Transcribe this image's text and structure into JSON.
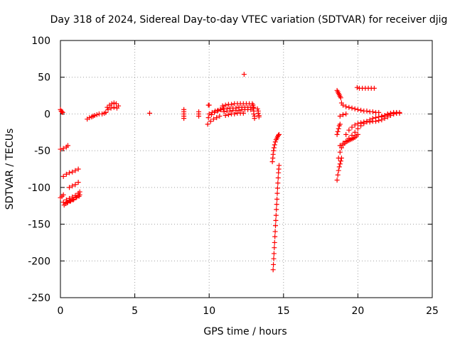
{
  "chart_data": {
    "type": "scatter",
    "title": "Day 318 of 2024, Sidereal Day-to-day VTEC variation (SDTVAR) for receiver djig",
    "xlabel": "GPS time / hours",
    "ylabel": "SDTVAR / TECUs",
    "xlim": [
      0,
      25
    ],
    "ylim": [
      -250,
      100
    ],
    "xticks": [
      0,
      5,
      10,
      15,
      20,
      25
    ],
    "yticks": [
      -250,
      -200,
      -150,
      -100,
      -50,
      0,
      50,
      100
    ],
    "grid": true,
    "marker": "+",
    "color": "#ff0000",
    "segments": [
      {
        "name": "seg-a1",
        "x": [
          0.0,
          0.05,
          0.1,
          0.15
        ],
        "y": [
          6,
          4,
          3,
          2
        ]
      },
      {
        "name": "seg-a2",
        "x": [
          0.0,
          0.2,
          0.4,
          0.5
        ],
        "y": [
          -48,
          -47,
          -45,
          -43
        ]
      },
      {
        "name": "seg-a3",
        "x": [
          0.0,
          0.1,
          0.2
        ],
        "y": [
          -114,
          -112,
          -110
        ]
      },
      {
        "name": "seg-a4",
        "x": [
          0.2,
          0.4,
          0.6,
          0.8,
          1.0,
          1.2,
          1.3
        ],
        "y": [
          -120,
          -117,
          -115,
          -113,
          -111,
          -108,
          -106
        ]
      },
      {
        "name": "seg-a5",
        "x": [
          0.25,
          0.45,
          0.65,
          0.85,
          1.05,
          1.25
        ],
        "y": [
          -124,
          -121,
          -119,
          -117,
          -114,
          -112
        ]
      },
      {
        "name": "seg-a6",
        "x": [
          0.35,
          0.5,
          0.7,
          0.9,
          1.1,
          1.3
        ],
        "y": [
          -122,
          -120,
          -118,
          -116,
          -113,
          -110
        ]
      },
      {
        "name": "seg-a7",
        "x": [
          0.2,
          0.4,
          0.6,
          0.8,
          1.0,
          1.2
        ],
        "y": [
          -85,
          -82,
          -80,
          -79,
          -77,
          -75
        ]
      },
      {
        "name": "seg-a8",
        "x": [
          0.6,
          0.8,
          1.0,
          1.2
        ],
        "y": [
          -100,
          -98,
          -96,
          -93
        ]
      },
      {
        "name": "seg-b1",
        "x": [
          1.8,
          1.95,
          2.1,
          2.2
        ],
        "y": [
          -7,
          -5,
          -4,
          -3
        ]
      },
      {
        "name": "seg-b2",
        "x": [
          2.3,
          2.45,
          2.6
        ],
        "y": [
          -2,
          -1,
          0
        ]
      },
      {
        "name": "seg-b3",
        "x": [
          2.8,
          2.95,
          3.05
        ],
        "y": [
          0,
          1,
          2
        ]
      },
      {
        "name": "seg-b4",
        "x": [
          3.15,
          3.3,
          3.45,
          3.6,
          3.75,
          3.9
        ],
        "y": [
          9,
          12,
          14,
          15,
          14,
          11
        ]
      },
      {
        "name": "seg-b5",
        "x": [
          3.2,
          3.4,
          3.6,
          3.8
        ],
        "y": [
          6,
          8,
          9,
          8
        ]
      },
      {
        "name": "seg-c1",
        "x": [
          6.0
        ],
        "y": [
          1
        ]
      },
      {
        "name": "seg-d1",
        "x": [
          8.3,
          8.3,
          8.3,
          8.3,
          8.3
        ],
        "y": [
          6,
          3,
          0,
          -3,
          -6
        ]
      },
      {
        "name": "seg-d2",
        "x": [
          9.3,
          9.3,
          9.3
        ],
        "y": [
          3,
          0,
          -3
        ]
      },
      {
        "name": "seg-e1",
        "x": [
          9.95,
          10.0
        ],
        "y": [
          12,
          12
        ]
      },
      {
        "name": "seg-e2",
        "x": [
          9.9,
          10.1,
          10.3,
          10.5,
          10.7
        ],
        "y": [
          -14,
          -10,
          -7,
          -5,
          -3
        ]
      },
      {
        "name": "seg-e3",
        "x": [
          9.95,
          10.15,
          10.35,
          10.55,
          10.75,
          10.95
        ],
        "y": [
          -5,
          -1,
          2,
          4,
          6,
          7
        ]
      },
      {
        "name": "seg-e4",
        "x": [
          10.0,
          10.2,
          10.4,
          10.6,
          10.8,
          11.0,
          11.2,
          11.4,
          11.6,
          11.8,
          12.0,
          12.2,
          12.4,
          12.6,
          12.8,
          13.0
        ],
        "y": [
          0,
          2,
          4,
          5,
          6,
          7,
          7,
          8,
          8,
          8,
          9,
          9,
          9,
          9,
          9,
          9
        ]
      },
      {
        "name": "seg-e5",
        "x": [
          10.9,
          11.1,
          11.3,
          11.5,
          11.7,
          11.9,
          12.1,
          12.3,
          12.5,
          12.7,
          12.9
        ],
        "y": [
          11,
          12,
          13,
          13,
          14,
          14,
          14,
          14,
          14,
          14,
          14
        ]
      },
      {
        "name": "seg-e6",
        "x": [
          11.0,
          11.2,
          11.4,
          11.6,
          11.8,
          12.0,
          12.2,
          12.4,
          12.6,
          12.8
        ],
        "y": [
          3,
          4,
          4,
          5,
          5,
          5,
          6,
          6,
          6,
          6
        ]
      },
      {
        "name": "seg-e7",
        "x": [
          11.1,
          11.3,
          11.5,
          11.7,
          11.9,
          12.1,
          12.3
        ],
        "y": [
          -2,
          -1,
          0,
          0,
          1,
          1,
          1
        ]
      },
      {
        "name": "seg-e8",
        "x": [
          12.35
        ],
        "y": [
          54
        ]
      },
      {
        "name": "seg-e9",
        "x": [
          12.95,
          12.95,
          13.0,
          13.0,
          13.05,
          13.05
        ],
        "y": [
          12,
          8,
          4,
          0,
          -3,
          -6
        ]
      },
      {
        "name": "seg-e10",
        "x": [
          13.25,
          13.3,
          13.3,
          13.35,
          13.35
        ],
        "y": [
          7,
          4,
          1,
          -2,
          -4
        ]
      },
      {
        "name": "seg-f1",
        "x": [
          14.25,
          14.28,
          14.3,
          14.33,
          14.36,
          14.4,
          14.45,
          14.5,
          14.55,
          14.6,
          14.65,
          14.7
        ],
        "y": [
          -65,
          -60,
          -55,
          -50,
          -46,
          -42,
          -38,
          -35,
          -33,
          -31,
          -29,
          -28
        ]
      },
      {
        "name": "seg-f2",
        "x": [
          14.3,
          14.32,
          14.34,
          14.36,
          14.38,
          14.4,
          14.42,
          14.44,
          14.46,
          14.48,
          14.5,
          14.52,
          14.54,
          14.56,
          14.58,
          14.6,
          14.62,
          14.64,
          14.66,
          14.68,
          14.7
        ],
        "y": [
          -212,
          -205,
          -197,
          -190,
          -182,
          -175,
          -167,
          -160,
          -152,
          -145,
          -138,
          -130,
          -123,
          -116,
          -108,
          -101,
          -94,
          -87,
          -80,
          -75,
          -70
        ]
      },
      {
        "name": "seg-g1",
        "x": [
          18.6,
          18.65,
          18.7,
          18.75,
          18.8,
          18.85
        ],
        "y": [
          32,
          30,
          28,
          26,
          24,
          22
        ]
      },
      {
        "name": "seg-g2",
        "x": [
          18.6,
          18.65,
          18.7,
          18.75,
          18.8,
          18.85,
          18.9
        ],
        "y": [
          -90,
          -83,
          -77,
          -72,
          -68,
          -64,
          -60
        ]
      },
      {
        "name": "seg-g3",
        "x": [
          18.6,
          18.65,
          18.7,
          18.75,
          18.8
        ],
        "y": [
          -28,
          -24,
          -20,
          -16,
          -14
        ]
      },
      {
        "name": "seg-g4",
        "x": [
          18.7,
          18.8,
          18.9,
          19.0,
          19.1,
          19.2,
          19.3,
          19.4,
          19.5,
          19.6,
          19.7,
          19.8,
          19.9,
          20.0
        ],
        "y": [
          -60,
          -52,
          -46,
          -42,
          -40,
          -38,
          -37,
          -36,
          -35,
          -34,
          -33,
          -32,
          -30,
          -28
        ]
      },
      {
        "name": "seg-g5",
        "x": [
          18.8,
          19.0,
          19.2,
          19.4,
          19.6,
          19.8,
          20.0,
          20.2,
          20.4,
          20.6,
          20.8,
          21.0,
          21.2,
          21.4,
          21.6,
          21.8,
          22.0,
          22.2,
          22.4,
          22.6,
          22.8
        ],
        "y": [
          -43,
          -40,
          -37,
          -33,
          -29,
          -25,
          -20,
          -16,
          -13,
          -10,
          -8,
          -6,
          -5,
          -4,
          -3,
          -2,
          -1,
          0,
          0,
          1,
          1
        ]
      },
      {
        "name": "seg-g6",
        "x": [
          19.2,
          19.4,
          19.6,
          19.8,
          20.0,
          20.2,
          20.4,
          20.6,
          20.8,
          21.0,
          21.2,
          21.4,
          21.6,
          21.8,
          22.0,
          22.2,
          22.4,
          22.6
        ],
        "y": [
          -28,
          -22,
          -18,
          -15,
          -13,
          -12,
          -11,
          -11,
          -11,
          -10,
          -10,
          -9,
          -8,
          -6,
          -4,
          -2,
          0,
          1
        ]
      },
      {
        "name": "seg-g7",
        "x": [
          18.9,
          19.0,
          19.2,
          19.4,
          19.6,
          19.8,
          20.0,
          20.2,
          20.4,
          20.6,
          20.8,
          21.0,
          21.2,
          21.4
        ],
        "y": [
          15,
          12,
          10,
          9,
          8,
          7,
          6,
          5,
          4,
          4,
          3,
          3,
          2,
          2
        ]
      },
      {
        "name": "seg-g8",
        "x": [
          18.8,
          19.0,
          19.2
        ],
        "y": [
          -3,
          -1,
          0
        ]
      },
      {
        "name": "seg-g9",
        "x": [
          19.95,
          20.1,
          20.3,
          20.5,
          20.7,
          20.9,
          21.1
        ],
        "y": [
          36,
          35,
          35,
          35,
          35,
          35,
          35
        ]
      },
      {
        "name": "seg-g10",
        "x": [
          21.6,
          21.8,
          22.0,
          22.2,
          22.4,
          22.6,
          22.8
        ],
        "y": [
          -4,
          -2,
          0,
          1,
          2,
          2,
          2
        ]
      }
    ]
  }
}
